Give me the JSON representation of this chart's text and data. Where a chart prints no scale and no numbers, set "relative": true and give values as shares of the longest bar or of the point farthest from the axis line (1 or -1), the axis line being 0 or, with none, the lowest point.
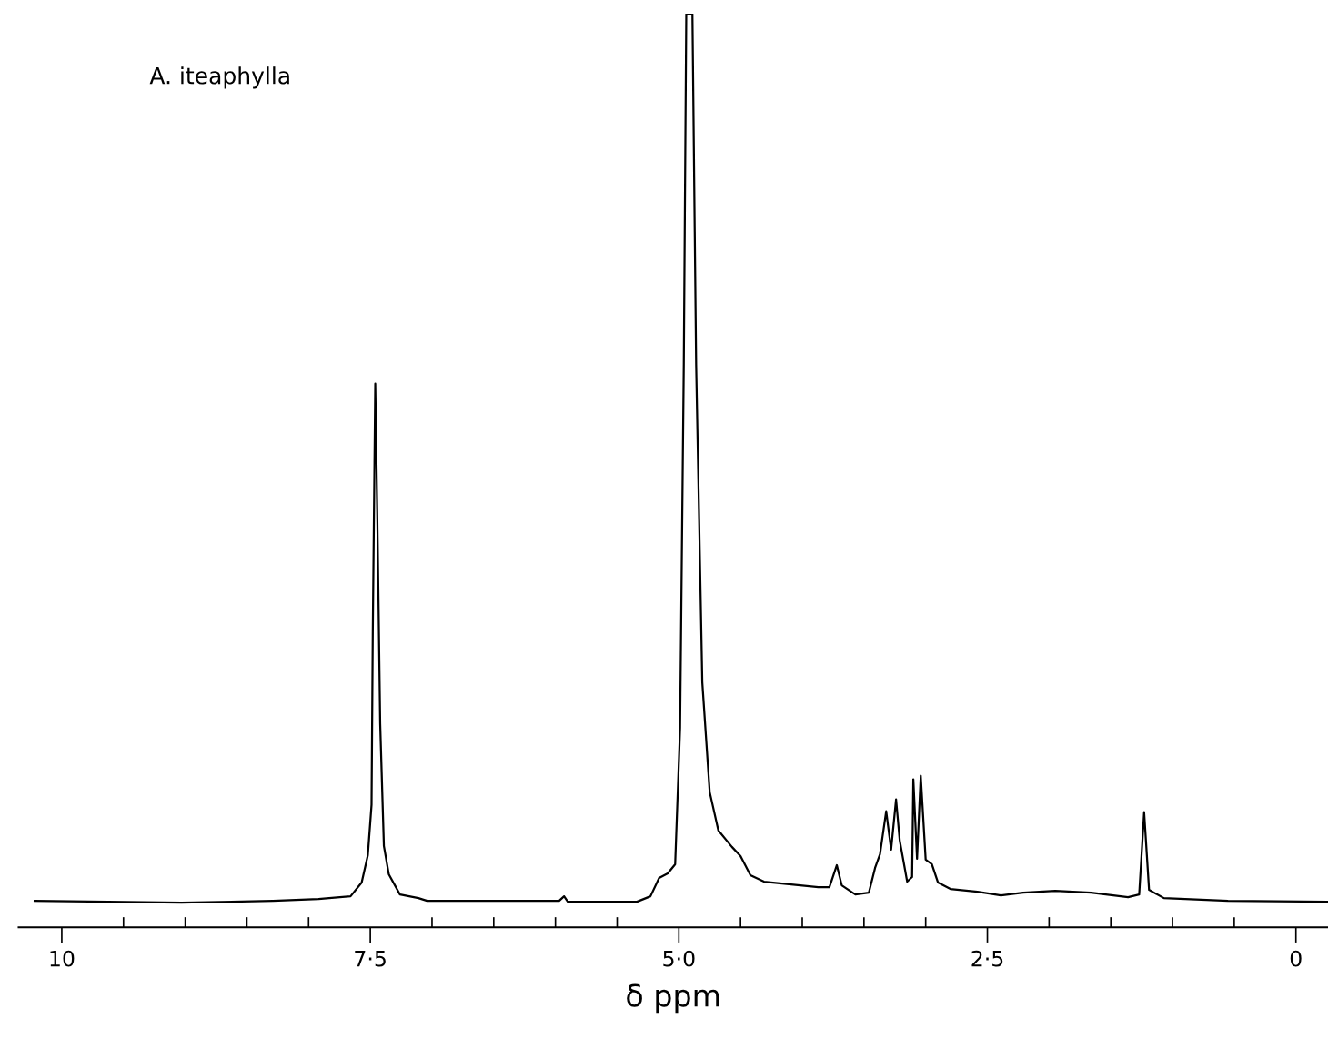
{
  "chart_data": {
    "type": "line",
    "title": "A. iteaphylla",
    "xlabel": "δ ppm",
    "relative": true,
    "grid": false,
    "legend": false,
    "marker": "none",
    "line_style": "solid",
    "xlim": [
      10.35,
      -0.26
    ],
    "xticks": [
      10,
      {
        "value": 9.5,
        "label": null
      },
      {
        "value": 9.0,
        "label": null
      },
      {
        "value": 8.5,
        "label": null
      },
      {
        "value": 8.0,
        "label": null
      },
      {
        "value": 7.5,
        "label": "7·5"
      },
      {
        "value": 7.0,
        "label": null
      },
      {
        "value": 6.5,
        "label": null
      },
      {
        "value": 6.0,
        "label": null
      },
      {
        "value": 5.5,
        "label": null
      },
      {
        "value": 5.0,
        "label": "5·0"
      },
      {
        "value": 4.5,
        "label": null
      },
      {
        "value": 4.0,
        "label": null
      },
      {
        "value": 3.5,
        "label": null
      },
      {
        "value": 3.0,
        "label": null
      },
      {
        "value": 2.5,
        "label": "2·5"
      },
      {
        "value": 2.0,
        "label": null
      },
      {
        "value": 1.5,
        "label": null
      },
      {
        "value": 1.0,
        "label": null
      },
      {
        "value": 0.5,
        "label": null
      },
      0
    ],
    "series": [
      {
        "color": "#000000",
        "x": [
          10.22,
          9.03,
          8.29,
          7.92,
          7.66,
          7.57,
          7.52,
          7.49,
          7.48,
          7.46,
          7.44,
          7.42,
          7.39,
          7.35,
          7.26,
          7.11,
          7.04,
          6.45,
          5.97,
          5.93,
          5.9,
          5.34,
          5.23,
          5.16,
          5.09,
          5.03,
          4.99,
          4.96,
          4.94,
          4.89,
          4.86,
          4.81,
          4.75,
          4.68,
          4.57,
          4.5,
          4.42,
          4.31,
          4.09,
          3.87,
          3.78,
          3.72,
          3.68,
          3.57,
          3.46,
          3.41,
          3.37,
          3.32,
          3.28,
          3.24,
          3.21,
          3.15,
          3.11,
          3.1,
          3.07,
          3.04,
          3.0,
          2.95,
          2.9,
          2.8,
          2.58,
          2.39,
          2.21,
          1.95,
          1.66,
          1.36,
          1.27,
          1.23,
          1.19,
          1.07,
          0.55,
          -0.26
        ],
        "values": [
          0.029,
          0.027,
          0.029,
          0.031,
          0.034,
          0.049,
          0.079,
          0.134,
          0.323,
          0.595,
          0.42,
          0.223,
          0.089,
          0.058,
          0.036,
          0.032,
          0.029,
          0.029,
          0.029,
          0.034,
          0.028,
          0.028,
          0.034,
          0.054,
          0.059,
          0.069,
          0.218,
          0.617,
          1.0,
          1.0,
          0.616,
          0.268,
          0.148,
          0.106,
          0.088,
          0.078,
          0.057,
          0.05,
          0.047,
          0.044,
          0.044,
          0.068,
          0.046,
          0.036,
          0.038,
          0.065,
          0.08,
          0.127,
          0.085,
          0.14,
          0.095,
          0.05,
          0.055,
          0.162,
          0.075,
          0.166,
          0.074,
          0.069,
          0.049,
          0.042,
          0.039,
          0.035,
          0.038,
          0.04,
          0.038,
          0.033,
          0.036,
          0.126,
          0.041,
          0.032,
          0.029,
          0.028
        ]
      }
    ]
  }
}
